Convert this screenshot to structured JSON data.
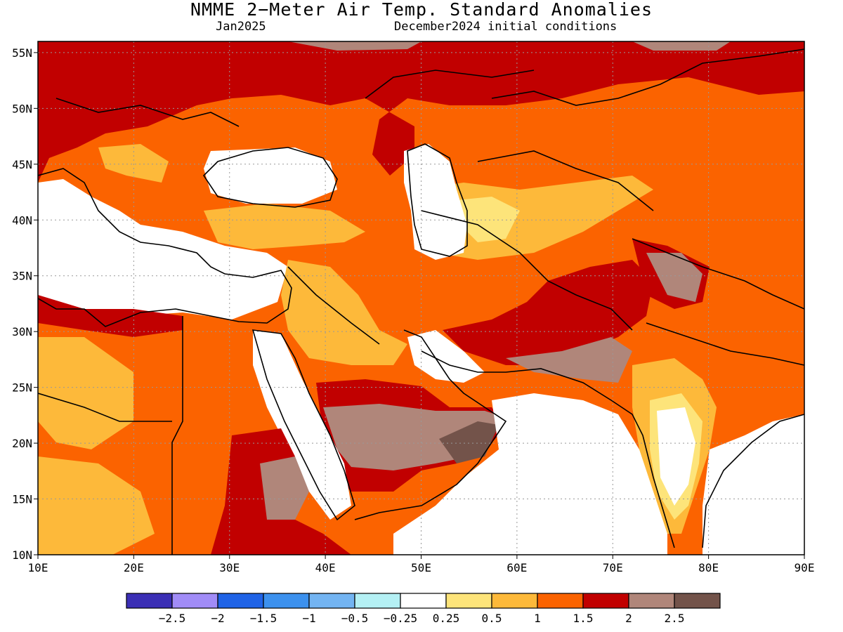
{
  "title": "NMME 2−Meter Air Temp. Standard Anomalies",
  "subtitle_left": "Jan2025",
  "subtitle_right": "December2024 initial conditions",
  "map": {
    "lon_range": [
      10,
      90
    ],
    "lat_range": [
      10,
      56
    ],
    "lon_ticks": [
      "10E",
      "20E",
      "30E",
      "40E",
      "50E",
      "60E",
      "70E",
      "80E",
      "90E"
    ],
    "lat_ticks": [
      "10N",
      "15N",
      "20N",
      "25N",
      "30N",
      "35N",
      "40N",
      "45N",
      "50N",
      "55N"
    ],
    "grid": "dotted"
  },
  "colorbar": {
    "colors": [
      "#3b2fb5",
      "#a18cf7",
      "#1f63e6",
      "#3c91ee",
      "#73b4f2",
      "#b4f0f4",
      "#ffffff",
      "#fde47a",
      "#fdb93a",
      "#fb6300",
      "#c10000",
      "#b0867a",
      "#73534a"
    ],
    "labels": [
      "−2.5",
      "−2",
      "−1.5",
      "−1",
      "−0.5",
      "−0.25",
      "0.25",
      "0.5",
      "1",
      "1.5",
      "2",
      "2.5"
    ]
  },
  "legend_colors": {
    "anomaly_1_1_5": "#fb6300",
    "anomaly_1_5_2": "#c10000",
    "anomaly_2_2_5": "#b0867a",
    "anomaly_2_5_plus": "#73534a",
    "anomaly_0_5_1": "#fdb93a",
    "anomaly_0_25_0_5": "#fde47a",
    "near_normal": "#ffffff"
  }
}
